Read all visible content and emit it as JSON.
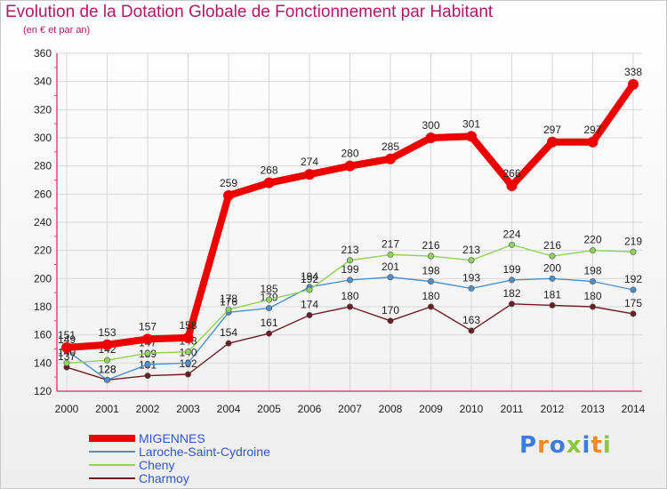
{
  "title": "Evolution de la Dotation Globale de Fonctionnement par Habitant",
  "subtitle": "(en € et par an)",
  "logo": "Proxiti",
  "chart_data": {
    "type": "line",
    "x": [
      "2000",
      "2001",
      "2002",
      "2003",
      "2004",
      "2005",
      "2006",
      "2007",
      "2008",
      "2009",
      "2010",
      "2011",
      "2012",
      "2013",
      "2014"
    ],
    "ylim": [
      120,
      360
    ],
    "yticks": [
      120,
      140,
      160,
      180,
      200,
      220,
      240,
      260,
      280,
      300,
      320,
      340,
      360
    ],
    "grid": true,
    "legend_position": "bottom-left",
    "series": [
      {
        "name": "Charmoy",
        "color": "#6b1d24",
        "values": [
          137,
          128,
          131,
          132,
          154,
          161,
          174,
          180,
          170,
          180,
          163,
          182,
          181,
          180,
          175
        ]
      },
      {
        "name": "Laroche-Saint-Cydroine",
        "color": "#4f8fc9",
        "values": [
          149,
          128,
          139,
          140,
          176,
          179,
          194,
          199,
          201,
          198,
          193,
          199,
          200,
          198,
          192
        ]
      },
      {
        "name": "Cheny",
        "color": "#8fd35a",
        "values": [
          140,
          142,
          147,
          148,
          178,
          185,
          192,
          213,
          217,
          216,
          213,
          224,
          216,
          220,
          219
        ]
      },
      {
        "name": "MIGENNES",
        "color": "#ee0000",
        "values": [
          151,
          153,
          157,
          158,
          259,
          268,
          274,
          280,
          285,
          300,
          301,
          266,
          297,
          297,
          338
        ]
      }
    ],
    "legend": [
      {
        "name": "MIGENNES",
        "color": "#ee0000"
      },
      {
        "name": "Laroche-Saint-Cydroine",
        "color": "#4f8fc9"
      },
      {
        "name": "Cheny",
        "color": "#8fd35a"
      },
      {
        "name": "Charmoy",
        "color": "#6b1d24"
      }
    ]
  }
}
